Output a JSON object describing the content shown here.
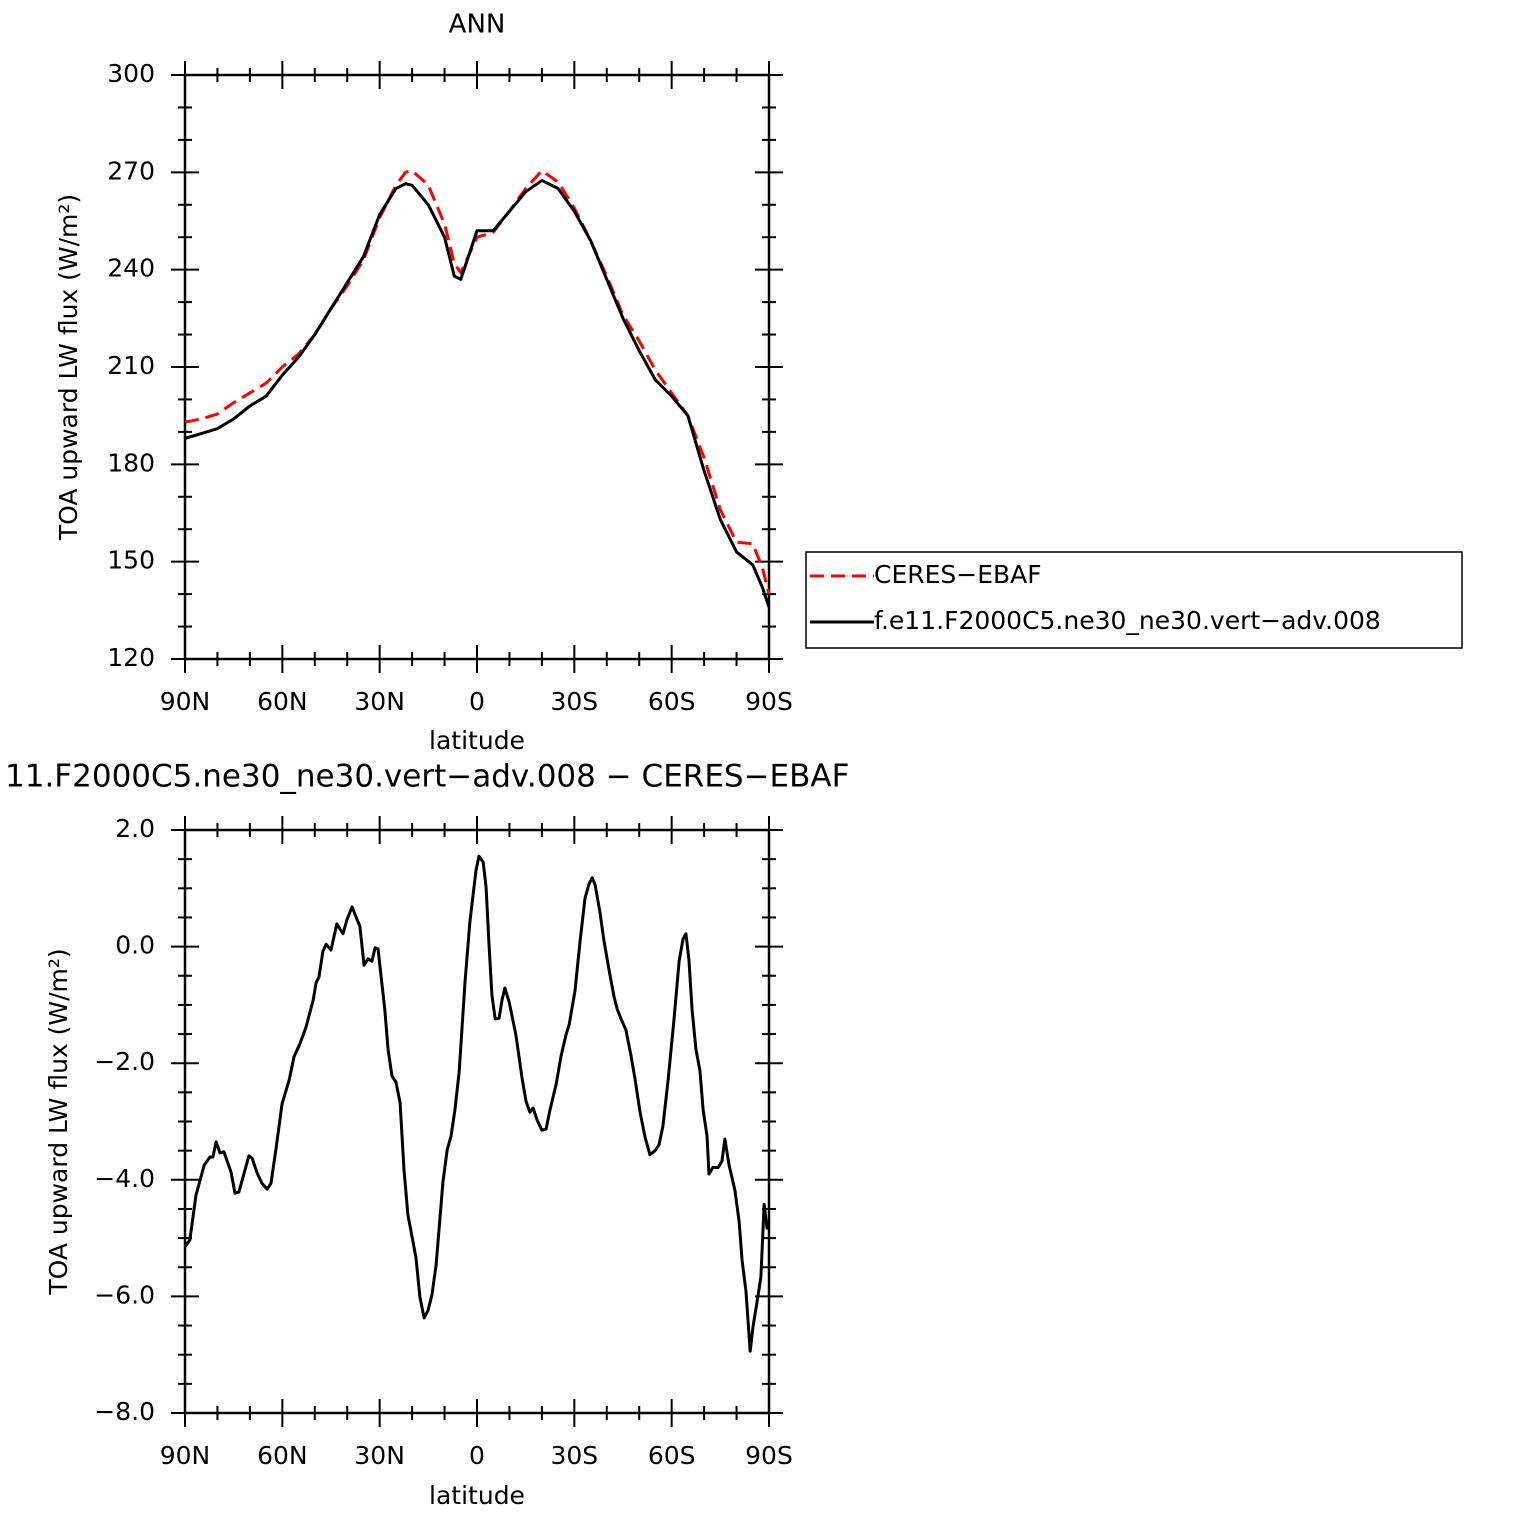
{
  "chart_data": [
    {
      "type": "line",
      "title": "ANN",
      "x_label": "latitude",
      "y_label": "TOA upward LW flux (W/m²)",
      "xlim": [
        90,
        -90
      ],
      "xticks": [
        {
          "value": 90,
          "label": "90N"
        },
        {
          "value": 60,
          "label": "60N"
        },
        {
          "value": 30,
          "label": "30N"
        },
        0,
        {
          "value": -30,
          "label": "30S"
        },
        {
          "value": -60,
          "label": "60S"
        },
        {
          "value": -90,
          "label": "90S"
        }
      ],
      "ylim": [
        120,
        300
      ],
      "yticks": [
        120,
        150,
        180,
        210,
        240,
        270,
        300
      ],
      "legend": "right",
      "x": [
        90,
        85,
        80,
        75,
        70,
        65,
        60,
        55,
        50,
        45,
        40,
        35,
        30,
        25,
        22,
        20,
        15,
        10,
        7,
        5,
        0,
        -5,
        -10,
        -15,
        -20,
        -25,
        -30,
        -35,
        -40,
        -45,
        -50,
        -55,
        -60,
        -65,
        -70,
        -75,
        -80,
        -85,
        -88,
        -90
      ],
      "series": [
        {
          "name": "CERES−EBAF",
          "color": "#ff0000",
          "dashed": true,
          "values": [
            193,
            194,
            195.5,
            199,
            202,
            205,
            210,
            214,
            220,
            228,
            235,
            243,
            256,
            266,
            270,
            270.5,
            266,
            254,
            242,
            239,
            250,
            251.5,
            258,
            265,
            270.5,
            267,
            259,
            249,
            238,
            226,
            218,
            209,
            202,
            195,
            182,
            166,
            156,
            155.5,
            148,
            140
          ]
        },
        {
          "name": "f.e11.F2000C5.ne30_ne30.vert−adv.008",
          "color": "#000000",
          "dashed": false,
          "values": [
            188,
            189.5,
            191,
            194,
            198,
            201,
            207.5,
            213,
            220,
            228,
            236,
            244,
            257,
            265,
            266.5,
            266,
            260,
            250,
            238,
            237,
            252,
            252,
            258,
            264,
            267.5,
            265,
            258,
            249,
            237,
            225,
            215,
            206,
            201,
            195,
            178,
            163,
            153,
            149,
            142,
            136
          ]
        }
      ]
    },
    {
      "type": "line",
      "title": "11.F2000C5.ne30_ne30.vert−adv.008 − CERES−EBAF",
      "x_label": "latitude",
      "y_label": "TOA upward LW flux (W/m²)",
      "xlim": [
        90,
        -90
      ],
      "xticks": [
        {
          "value": 90,
          "label": "90N"
        },
        {
          "value": 60,
          "label": "60N"
        },
        {
          "value": 30,
          "label": "30N"
        },
        0,
        {
          "value": -30,
          "label": "30S"
        },
        {
          "value": -60,
          "label": "60S"
        },
        {
          "value": -90,
          "label": "90S"
        }
      ],
      "ylim": [
        -8,
        2
      ],
      "yticks": [
        {
          "value": -8,
          "label": "−8.0"
        },
        {
          "value": -6,
          "label": "−6.0"
        },
        {
          "value": -4,
          "label": "−4.0"
        },
        {
          "value": -2,
          "label": "−2.0"
        },
        {
          "value": 0,
          "label": "0.0"
        },
        {
          "value": 2,
          "label": "2.0"
        }
      ],
      "color": "#000000",
      "x": [
        90,
        88.5,
        86.6,
        84.1,
        82.3,
        81.4,
        80.4,
        79.2,
        78.0,
        75.8,
        74.6,
        73.4,
        70.3,
        69.3,
        67.8,
        66.3,
        64.7,
        63.5,
        62.0,
        60.1,
        57.9,
        56.4,
        54.6,
        52.7,
        50.5,
        49.6,
        48.7,
        47.5,
        46.5,
        45.0,
        43.2,
        41.3,
        40.1,
        38.5,
        37.3,
        36.1,
        34.8,
        33.6,
        32.4,
        31.4,
        30.5,
        28.4,
        27.4,
        26.2,
        25.0,
        23.7,
        22.5,
        21.3,
        20.0,
        18.8,
        17.6,
        16.3,
        15.1,
        13.9,
        12.6,
        10.5,
        9.2,
        8.0,
        6.8,
        5.5,
        3.7,
        2.2,
        0.3,
        -0.6,
        -1.9,
        -2.8,
        -3.7,
        -4.6,
        -5.6,
        -6.8,
        -7.7,
        -8.6,
        -9.9,
        -10.8,
        -12.0,
        -13.9,
        -15.1,
        -16.3,
        -17.3,
        -18.5,
        -20.0,
        -21.3,
        -22.5,
        -24.4,
        -25.9,
        -27.4,
        -28.4,
        -30.2,
        -31.8,
        -33.3,
        -34.5,
        -35.5,
        -36.4,
        -37.9,
        -39.1,
        -40.7,
        -42.2,
        -43.2,
        -44.4,
        -45.9,
        -47.5,
        -48.7,
        -50.2,
        -51.8,
        -53.3,
        -54.9,
        -56.1,
        -57.3,
        -58.9,
        -60.7,
        -62.3,
        -63.5,
        -64.4,
        -65.3,
        -66.3,
        -67.5,
        -68.7,
        -69.7,
        -70.9,
        -71.5,
        -72.7,
        -74.3,
        -75.5,
        -76.4,
        -77.7,
        -79.5,
        -80.8,
        -81.7,
        -82.9,
        -84.2,
        -85.1,
        -86.3,
        -87.5,
        -88.5,
        -89.4,
        -90
      ],
      "values": [
        -5.15,
        -5.03,
        -4.26,
        -3.75,
        -3.61,
        -3.61,
        -3.35,
        -3.54,
        -3.52,
        -3.87,
        -4.23,
        -4.21,
        -3.59,
        -3.63,
        -3.88,
        -4.06,
        -4.16,
        -4.06,
        -3.49,
        -2.7,
        -2.29,
        -1.89,
        -1.67,
        -1.38,
        -0.92,
        -0.62,
        -0.52,
        -0.08,
        0.04,
        -0.06,
        0.39,
        0.22,
        0.46,
        0.68,
        0.51,
        0.35,
        -0.32,
        -0.21,
        -0.25,
        -0.02,
        -0.04,
        -1.09,
        -1.77,
        -2.22,
        -2.32,
        -2.68,
        -3.83,
        -4.6,
        -4.98,
        -5.34,
        -6.01,
        -6.37,
        -6.24,
        -5.98,
        -5.46,
        -4.04,
        -3.49,
        -3.25,
        -2.8,
        -2.15,
        -0.61,
        0.42,
        1.31,
        1.55,
        1.45,
        1.02,
        0.04,
        -0.83,
        -1.24,
        -1.23,
        -0.92,
        -0.71,
        -0.95,
        -1.19,
        -1.52,
        -2.26,
        -2.65,
        -2.84,
        -2.77,
        -2.97,
        -3.15,
        -3.13,
        -2.8,
        -2.36,
        -1.88,
        -1.52,
        -1.34,
        -0.76,
        0.11,
        0.83,
        1.07,
        1.18,
        1.06,
        0.59,
        0.11,
        -0.4,
        -0.85,
        -1.07,
        -1.24,
        -1.43,
        -1.88,
        -2.27,
        -2.82,
        -3.27,
        -3.57,
        -3.5,
        -3.4,
        -3.08,
        -2.29,
        -1.26,
        -0.25,
        0.13,
        0.22,
        -0.21,
        -1.09,
        -1.77,
        -2.12,
        -2.8,
        -3.25,
        -3.9,
        -3.79,
        -3.79,
        -3.68,
        -3.3,
        -3.75,
        -4.18,
        -4.72,
        -5.38,
        -5.91,
        -6.94,
        -6.51,
        -6.1,
        -5.67,
        -4.42,
        -4.83,
        -4.72
      ]
    }
  ]
}
